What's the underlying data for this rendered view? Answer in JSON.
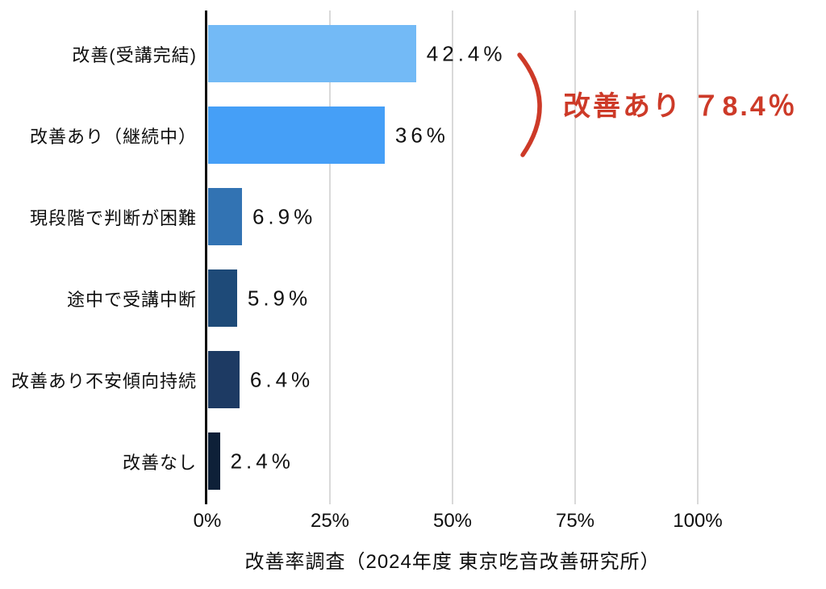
{
  "chart_data": {
    "type": "bar",
    "orientation": "horizontal",
    "title": "改善率調査（2024年度 東京吃音改善研究所）",
    "categories": [
      "改善(受講完結)",
      "改善あり（継続中）",
      "現段階で判断が困難",
      "途中で受講中断",
      "改善あり不安傾向持続",
      "改善なし"
    ],
    "values": [
      42.4,
      36,
      6.9,
      5.9,
      6.4,
      2.4
    ],
    "value_labels": [
      "42.4%",
      "36%",
      "6.9%",
      "5.9%",
      "6.4%",
      "2.4%"
    ],
    "bar_colors": [
      "#73baf6",
      "#459ff7",
      "#3273b3",
      "#1e4a78",
      "#1d3a63",
      "#0e2038"
    ],
    "xlabel": "",
    "ylabel": "",
    "xlim": [
      0,
      100
    ],
    "x_ticks": [
      "0%",
      "25%",
      "50%",
      "75%",
      "100%"
    ],
    "x_tick_values": [
      0,
      25,
      50,
      75,
      100
    ],
    "grid": true,
    "gridline_color": "#d9d9d9",
    "axis_color": "#0d0d0d",
    "annotation": {
      "label": "改善あり ７8.4％",
      "covers_categories": [
        "改善(受講完結)",
        "改善あり（継続中）"
      ],
      "value": 78.4,
      "color": "#cd3a28"
    }
  }
}
